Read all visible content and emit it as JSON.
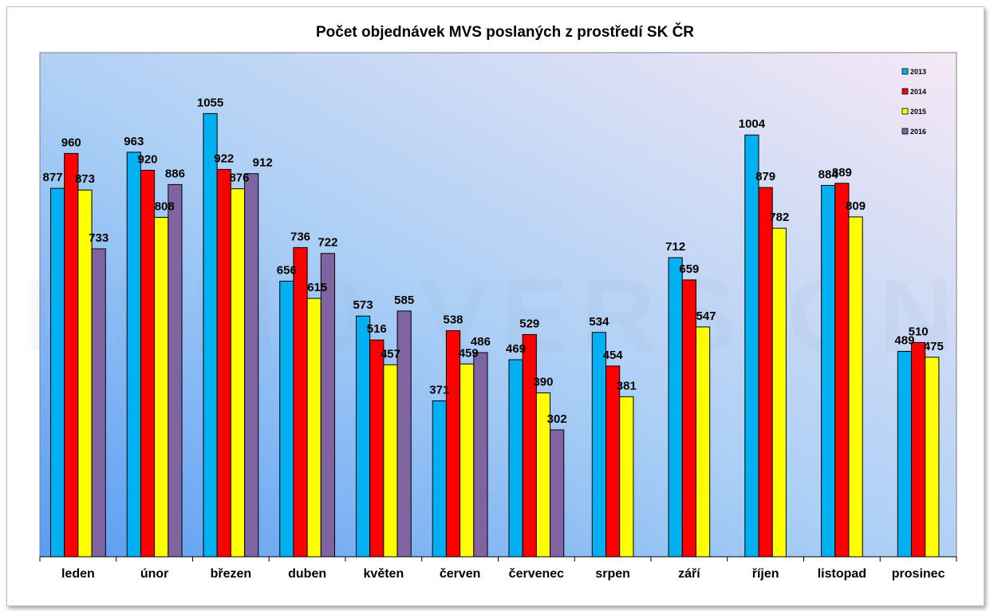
{
  "chart_data": {
    "type": "bar",
    "title": "Počet objednávek MVS poslaných z prostředí SK ČR",
    "watermark": "DEMO VERSION",
    "categories": [
      "leden",
      "únor",
      "březen",
      "duben",
      "květen",
      "červen",
      "červenec",
      "srpen",
      "září",
      "říjen",
      "listopad",
      "prosinec"
    ],
    "series": [
      {
        "name": "2013",
        "color": "#00b0f0",
        "values": [
          877,
          963,
          1055,
          656,
          573,
          371,
          469,
          534,
          712,
          1004,
          884,
          489
        ]
      },
      {
        "name": "2014",
        "color": "#ff0000",
        "values": [
          960,
          920,
          922,
          736,
          516,
          538,
          529,
          454,
          659,
          879,
          889,
          510
        ]
      },
      {
        "name": "2015",
        "color": "#ffff00",
        "values": [
          873,
          808,
          876,
          615,
          457,
          459,
          390,
          381,
          547,
          782,
          809,
          475
        ]
      },
      {
        "name": "2016",
        "color": "#8064a2",
        "values": [
          733,
          886,
          912,
          722,
          585,
          486,
          302,
          null,
          null,
          null,
          null,
          null
        ]
      }
    ],
    "ylim": [
      0,
      1200
    ],
    "xlabel": "",
    "ylabel": "",
    "legend_position": "top-right"
  }
}
